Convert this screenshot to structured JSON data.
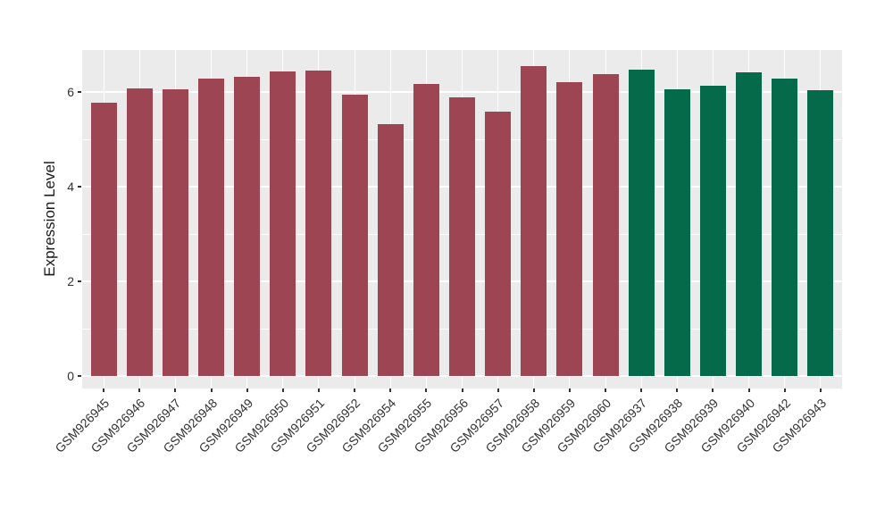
{
  "figure": {
    "background": "#FFFFFF",
    "panel_background": "#EBEBEB",
    "gridline_color": "#FFFFFF",
    "tick_color": "#333333",
    "text_color": "#1A1A1A",
    "group_colors": {
      "left_group": "#9E4553",
      "right_group": "#046A49"
    }
  },
  "chart_data": {
    "type": "bar",
    "title": "",
    "xlabel": "",
    "ylabel": "Expression Level",
    "ylim": [
      0,
      6.9
    ],
    "yticks": [
      0,
      2,
      4,
      6
    ],
    "yticks_minor": [
      1,
      3,
      5
    ],
    "grid": true,
    "legend": false,
    "categories": [
      "GSM926945",
      "GSM926946",
      "GSM926947",
      "GSM926948",
      "GSM926949",
      "GSM926950",
      "GSM926951",
      "GSM926952",
      "GSM926954",
      "GSM926955",
      "GSM926956",
      "GSM926957",
      "GSM926958",
      "GSM926959",
      "GSM926960",
      "GSM926937",
      "GSM926938",
      "GSM926939",
      "GSM926940",
      "GSM926942",
      "GSM926943"
    ],
    "values": [
      5.77,
      6.08,
      6.06,
      6.29,
      6.32,
      6.44,
      6.46,
      5.95,
      5.33,
      6.17,
      5.88,
      5.58,
      6.54,
      6.21,
      6.37,
      6.48,
      6.05,
      6.13,
      6.41,
      6.29,
      6.03
    ],
    "bar_colors": [
      "#9E4553",
      "#9E4553",
      "#9E4553",
      "#9E4553",
      "#9E4553",
      "#9E4553",
      "#9E4553",
      "#9E4553",
      "#9E4553",
      "#9E4553",
      "#9E4553",
      "#9E4553",
      "#9E4553",
      "#9E4553",
      "#9E4553",
      "#046A49",
      "#046A49",
      "#046A49",
      "#046A49",
      "#046A49",
      "#046A49"
    ]
  }
}
